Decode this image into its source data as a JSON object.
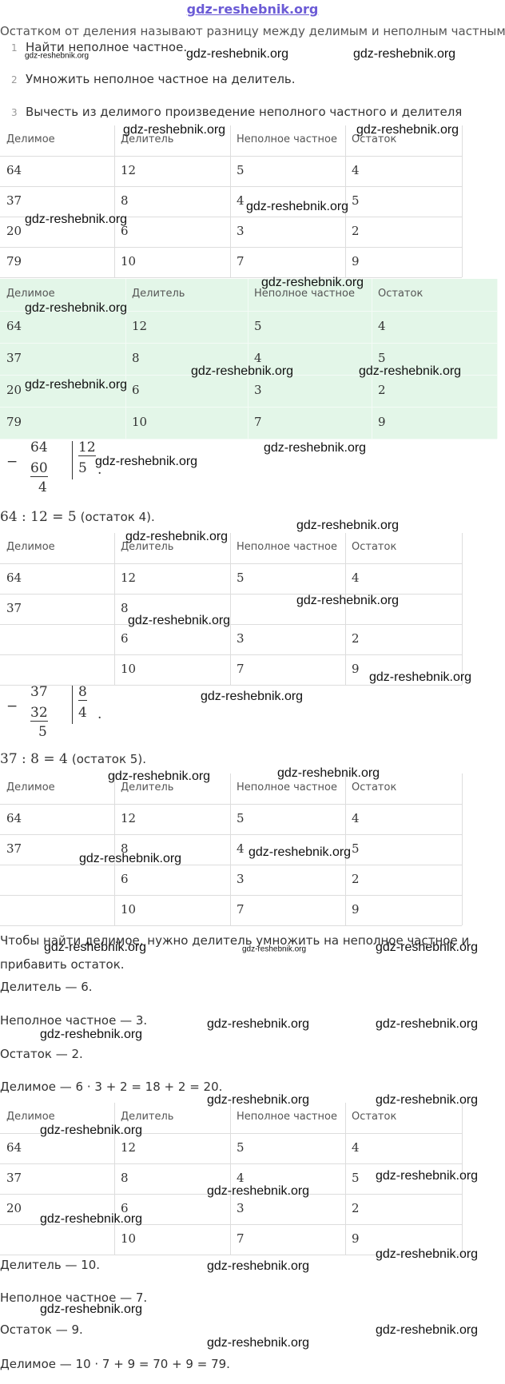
{
  "header": {
    "site": "gdz-reshebnik.org"
  },
  "intro": "Остатком от деления называют разницу между делимым и неполным частным",
  "steps": [
    {
      "number": "1",
      "text": "Найти неполное частное."
    },
    {
      "number": "2",
      "text": "Умножить неполное частное на делитель."
    },
    {
      "number": "3",
      "text": "Вычесть из делимого произведение неполного частного и делителя"
    }
  ],
  "tables": [
    {
      "header": [
        "Делимое",
        "Делитель",
        "Неполное частное",
        "Остаток"
      ],
      "rows": [
        [
          "64",
          "12",
          "5",
          "4"
        ],
        [
          "37",
          "8",
          "4",
          "5"
        ],
        [
          "20",
          "6",
          "3",
          "2"
        ],
        [
          "79",
          "10",
          "7",
          "9"
        ]
      ]
    },
    {
      "header": [
        "Делимое",
        "Делитель",
        "Неполное частное",
        "Остаток"
      ],
      "rows": [
        [
          "64",
          "12",
          "5",
          "4"
        ],
        [
          "37",
          "8",
          "4",
          "5"
        ],
        [
          "20",
          "6",
          "3",
          "2"
        ],
        [
          "79",
          "10",
          "7",
          "9"
        ]
      ]
    },
    {
      "header": [
        "Делимое",
        "Делитель",
        "Неполное частное",
        "Остаток"
      ],
      "rows": [
        [
          "64",
          "12",
          "5",
          "4"
        ],
        [
          "37",
          "8",
          null,
          null
        ],
        [
          null,
          "6",
          "3",
          "2"
        ],
        [
          null,
          "10",
          "7",
          "9"
        ]
      ]
    },
    {
      "header": [
        "Делимое",
        "Делитель",
        "Неполное частное",
        "Остаток"
      ],
      "rows": [
        [
          "64",
          "12",
          "5",
          "4"
        ],
        [
          "37",
          "8",
          "4",
          "5"
        ],
        [
          null,
          "6",
          "3",
          "2"
        ],
        [
          null,
          "10",
          "7",
          "9"
        ]
      ]
    },
    {
      "header": [
        "Делимое",
        "Делитель",
        "Неполное частное",
        "Остаток"
      ],
      "rows": [
        [
          "64",
          "12",
          "5",
          "4"
        ],
        [
          "37",
          "8",
          "4",
          "5"
        ],
        [
          "20",
          "6",
          "3",
          "2"
        ],
        [
          null,
          "10",
          "7",
          "9"
        ]
      ]
    }
  ],
  "divisions": [
    {
      "minus": "−",
      "dividend": "64",
      "subtrahend": "60",
      "remainder": "4",
      "divisor": "12",
      "quotient": "5",
      "end": "."
    },
    {
      "minus": "−",
      "dividend": "37",
      "subtrahend": "32",
      "remainder": "5",
      "divisor": "8",
      "quotient": "4",
      "end": "."
    }
  ],
  "results": [
    {
      "math": "64 : 12 = 5",
      "text": "(остаток 4)."
    },
    {
      "math": "37 : 8 = 4",
      "text": "(остаток 5)."
    }
  ],
  "paragraph": "Чтобы найти делимое, нужно делитель умножить на неполное частное и прибавить остаток.",
  "lines": [
    "Делитель — 6.",
    "Неполное частное — 3.",
    "Остаток — 2.",
    "Делимое — 6 · 3 + 2 = 18 + 2 = 20.",
    "Делитель — 10.",
    "Неполное частное — 7.",
    "Остаток — 9.",
    "Делимое — 10 · 7 + 9 = 70 + 9 = 79."
  ],
  "watermark": "gdz-reshebnik.org"
}
